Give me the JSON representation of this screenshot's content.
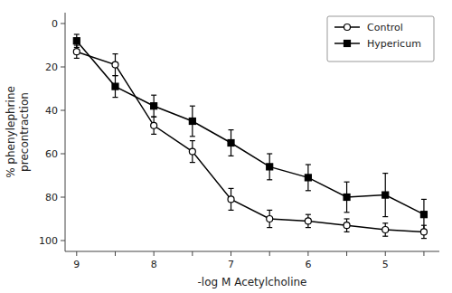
{
  "chart_data": {
    "type": "line",
    "title": "",
    "xlabel": "-log M Acetylcholine",
    "ylabel": "% phenylephrine\nprecontraction",
    "x": [
      9.0,
      8.5,
      8.0,
      7.5,
      7.0,
      6.5,
      6.0,
      5.5,
      5.0,
      4.5
    ],
    "xlim": [
      9.15,
      4.3
    ],
    "ylim": [
      105,
      -5
    ],
    "xticks": [
      9,
      {
        "value": 8.5,
        "label": null
      },
      8,
      {
        "value": 7.5,
        "label": null
      },
      7,
      {
        "value": 6.5,
        "label": null
      },
      6,
      {
        "value": 5.5,
        "label": null
      },
      5,
      {
        "value": 4.5,
        "label": null
      }
    ],
    "yticks": [
      0,
      20,
      40,
      60,
      80,
      100
    ],
    "grid": false,
    "legend": "upper right",
    "series": [
      {
        "name": "Control",
        "color": "#000000",
        "marker": "open-circle",
        "values": [
          13,
          19,
          47,
          59,
          81,
          90,
          91,
          93,
          95,
          96
        ],
        "errors": [
          3,
          5,
          4,
          5,
          5,
          4,
          3,
          3,
          3,
          3
        ]
      },
      {
        "name": "Hypericum",
        "color": "#000000",
        "marker": "square",
        "values": [
          8,
          29,
          38,
          45,
          55,
          66,
          71,
          80,
          79,
          88
        ],
        "errors": [
          3,
          5,
          5,
          7,
          6,
          6,
          6,
          7,
          10,
          7
        ]
      }
    ]
  }
}
